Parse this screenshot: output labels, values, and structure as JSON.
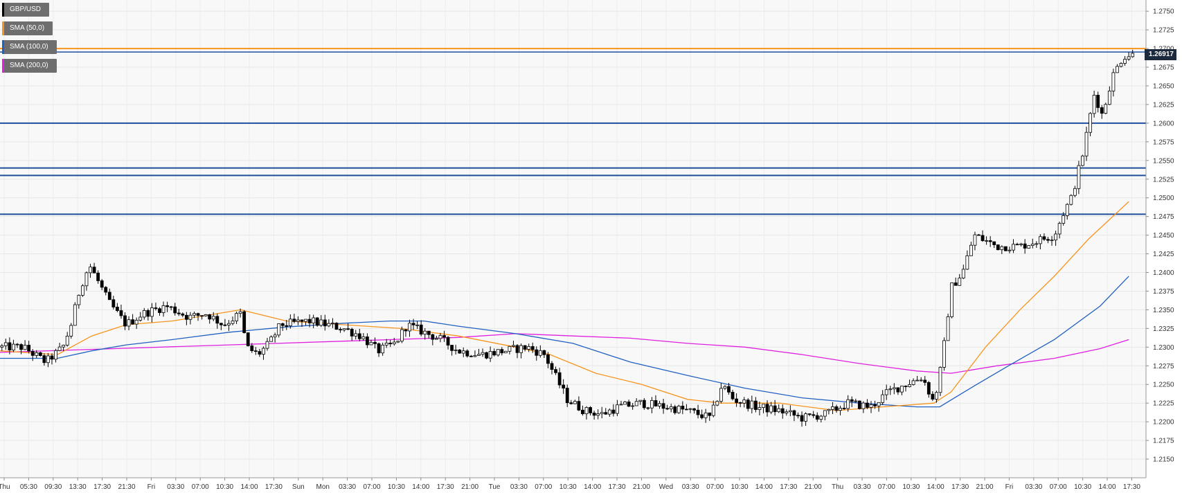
{
  "chart_data": {
    "type": "candlestick",
    "symbol": "GBP/USD",
    "y_ticks": [
      "1.2750",
      "1.2725",
      "1.2700",
      "1.2675",
      "1.2650",
      "1.2625",
      "1.2600",
      "1.2575",
      "1.2550",
      "1.2525",
      "1.2500",
      "1.2475",
      "1.2450",
      "1.2425",
      "1.2400",
      "1.2375",
      "1.2350",
      "1.2325",
      "1.2300",
      "1.2275",
      "1.2250",
      "1.2225",
      "1.2200",
      "1.2175",
      "1.2150"
    ],
    "y_range": [
      1.2125,
      1.2765
    ],
    "x_ticks": [
      "Thu",
      "05:30",
      "09:30",
      "13:30",
      "17:30",
      "21:30",
      "Fri",
      "03:30",
      "07:00",
      "10:30",
      "14:00",
      "17:30",
      "Sun",
      "Mon",
      "03:30",
      "07:00",
      "10:30",
      "14:00",
      "17:30",
      "21:00",
      "Tue",
      "03:30",
      "07:00",
      "10:30",
      "14:00",
      "17:30",
      "21:00",
      "Wed",
      "03:30",
      "07:00",
      "10:30",
      "14:00",
      "17:30",
      "21:00",
      "Thu",
      "03:30",
      "07:00",
      "10:30",
      "14:00",
      "17:30",
      "21:00",
      "Fri",
      "03:30",
      "07:00",
      "10:30",
      "14:00",
      "17:30"
    ],
    "last_price": "1.26917",
    "horizontal_levels": [
      1.27,
      1.26,
      1.254,
      1.253,
      1.2478
    ],
    "legend": [
      {
        "label": "GBP/USD",
        "color": "#000000"
      },
      {
        "label": "SMA (50,0)",
        "color": "#f7941d"
      },
      {
        "label": "SMA (100,0)",
        "color": "#2060c0"
      },
      {
        "label": "SMA (200,0)",
        "color": "#e020e0"
      }
    ],
    "close_path": [
      [
        0,
        1.23
      ],
      [
        0.02,
        1.23
      ],
      [
        0.03,
        1.229
      ],
      [
        0.04,
        1.228
      ],
      [
        0.055,
        1.23
      ],
      [
        0.062,
        1.233
      ],
      [
        0.07,
        1.238
      ],
      [
        0.078,
        1.241
      ],
      [
        0.085,
        1.239
      ],
      [
        0.095,
        1.236
      ],
      [
        0.11,
        1.233
      ],
      [
        0.125,
        1.2345
      ],
      [
        0.145,
        1.2355
      ],
      [
        0.165,
        1.234
      ],
      [
        0.18,
        1.2345
      ],
      [
        0.195,
        1.233
      ],
      [
        0.21,
        1.2345
      ],
      [
        0.215,
        1.23
      ],
      [
        0.225,
        1.229
      ],
      [
        0.235,
        1.2305
      ],
      [
        0.245,
        1.233
      ],
      [
        0.27,
        1.2335
      ],
      [
        0.285,
        1.233
      ],
      [
        0.3,
        1.2325
      ],
      [
        0.315,
        1.2315
      ],
      [
        0.33,
        1.2295
      ],
      [
        0.345,
        1.2305
      ],
      [
        0.355,
        1.233
      ],
      [
        0.37,
        1.232
      ],
      [
        0.385,
        1.231
      ],
      [
        0.4,
        1.2295
      ],
      [
        0.42,
        1.229
      ],
      [
        0.44,
        1.2295
      ],
      [
        0.46,
        1.23
      ],
      [
        0.475,
        1.229
      ],
      [
        0.485,
        1.226
      ],
      [
        0.495,
        1.223
      ],
      [
        0.51,
        1.2215
      ],
      [
        0.525,
        1.221
      ],
      [
        0.54,
        1.222
      ],
      [
        0.56,
        1.2225
      ],
      [
        0.58,
        1.222
      ],
      [
        0.6,
        1.2215
      ],
      [
        0.62,
        1.2205
      ],
      [
        0.63,
        1.225
      ],
      [
        0.64,
        1.223
      ],
      [
        0.66,
        1.222
      ],
      [
        0.68,
        1.2215
      ],
      [
        0.7,
        1.2205
      ],
      [
        0.72,
        1.221
      ],
      [
        0.74,
        1.2225
      ],
      [
        0.76,
        1.222
      ],
      [
        0.775,
        1.224
      ],
      [
        0.79,
        1.225
      ],
      [
        0.805,
        1.226
      ],
      [
        0.815,
        1.2225
      ],
      [
        0.822,
        1.228
      ],
      [
        0.83,
        1.238
      ],
      [
        0.84,
        1.24
      ],
      [
        0.85,
        1.245
      ],
      [
        0.87,
        1.2435
      ],
      [
        0.89,
        1.2435
      ],
      [
        0.91,
        1.2445
      ],
      [
        0.92,
        1.245
      ],
      [
        0.928,
        1.248
      ],
      [
        0.935,
        1.25
      ],
      [
        0.945,
        1.256
      ],
      [
        0.955,
        1.264
      ],
      [
        0.962,
        1.261
      ],
      [
        0.97,
        1.266
      ],
      [
        0.98,
        1.269
      ],
      [
        0.99,
        1.2692
      ]
    ],
    "sma50_path": [
      [
        0,
        1.2295
      ],
      [
        0.05,
        1.229
      ],
      [
        0.08,
        1.2315
      ],
      [
        0.11,
        1.233
      ],
      [
        0.15,
        1.2335
      ],
      [
        0.21,
        1.235
      ],
      [
        0.25,
        1.2335
      ],
      [
        0.3,
        1.233
      ],
      [
        0.35,
        1.2325
      ],
      [
        0.4,
        1.2315
      ],
      [
        0.45,
        1.23
      ],
      [
        0.48,
        1.229
      ],
      [
        0.52,
        1.2265
      ],
      [
        0.56,
        1.225
      ],
      [
        0.6,
        1.223
      ],
      [
        0.63,
        1.2225
      ],
      [
        0.68,
        1.2225
      ],
      [
        0.73,
        1.2215
      ],
      [
        0.77,
        1.222
      ],
      [
        0.815,
        1.2225
      ],
      [
        0.83,
        1.224
      ],
      [
        0.86,
        1.23
      ],
      [
        0.89,
        1.235
      ],
      [
        0.92,
        1.2395
      ],
      [
        0.95,
        1.2445
      ],
      [
        0.985,
        1.2495
      ]
    ],
    "sma100_path": [
      [
        0,
        1.2285
      ],
      [
        0.05,
        1.2285
      ],
      [
        0.08,
        1.2295
      ],
      [
        0.11,
        1.2303
      ],
      [
        0.15,
        1.231
      ],
      [
        0.2,
        1.232
      ],
      [
        0.25,
        1.2327
      ],
      [
        0.3,
        1.2332
      ],
      [
        0.34,
        1.2335
      ],
      [
        0.37,
        1.2335
      ],
      [
        0.4,
        1.2328
      ],
      [
        0.45,
        1.2318
      ],
      [
        0.5,
        1.2305
      ],
      [
        0.55,
        1.228
      ],
      [
        0.6,
        1.2262
      ],
      [
        0.65,
        1.2245
      ],
      [
        0.7,
        1.2232
      ],
      [
        0.75,
        1.2225
      ],
      [
        0.8,
        1.222
      ],
      [
        0.82,
        1.222
      ],
      [
        0.85,
        1.2248
      ],
      [
        0.88,
        1.2275
      ],
      [
        0.92,
        1.231
      ],
      [
        0.96,
        1.2355
      ],
      [
        0.985,
        1.2395
      ]
    ],
    "sma200_path": [
      [
        0,
        1.2293
      ],
      [
        0.1,
        1.2298
      ],
      [
        0.2,
        1.2303
      ],
      [
        0.3,
        1.2308
      ],
      [
        0.4,
        1.2313
      ],
      [
        0.45,
        1.2318
      ],
      [
        0.5,
        1.2315
      ],
      [
        0.55,
        1.2312
      ],
      [
        0.6,
        1.2305
      ],
      [
        0.65,
        1.23
      ],
      [
        0.7,
        1.229
      ],
      [
        0.75,
        1.2278
      ],
      [
        0.8,
        1.2268
      ],
      [
        0.83,
        1.2265
      ],
      [
        0.87,
        1.2275
      ],
      [
        0.92,
        1.2285
      ],
      [
        0.96,
        1.2298
      ],
      [
        0.985,
        1.231
      ]
    ]
  }
}
